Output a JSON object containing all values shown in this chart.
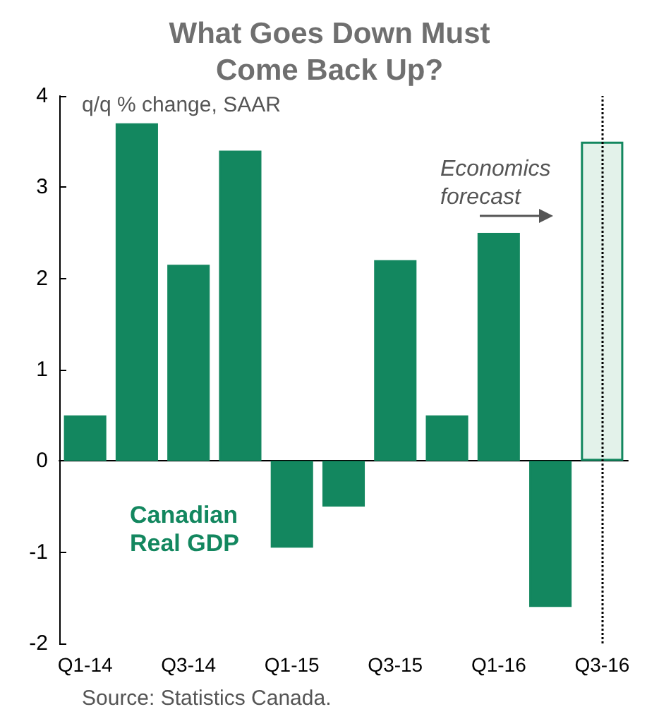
{
  "chart_data": {
    "type": "bar",
    "title": "What Goes Down Must\nCome Back Up?",
    "ylabel": "q/q % change, SAAR",
    "categories": [
      "Q1-14",
      null,
      "Q3-14",
      null,
      "Q1-15",
      null,
      "Q3-15",
      null,
      "Q1-16",
      null,
      "Q3-16"
    ],
    "values": [
      0.5,
      3.7,
      2.15,
      3.4,
      -0.95,
      -0.5,
      2.2,
      0.5,
      2.5,
      -1.6,
      3.5
    ],
    "color": "#13875f",
    "colors": [
      "#13875f",
      "#13875f",
      "#13875f",
      "#13875f",
      "#13875f",
      "#13875f",
      "#13875f",
      "#13875f",
      "#13875f",
      "#13875f",
      "#e3f2ea"
    ],
    "ylim": [
      -2,
      4
    ],
    "yticks": [
      -2,
      -1,
      0,
      1,
      2,
      3,
      4
    ],
    "grid": false,
    "ref_lines": [
      {
        "axis": "x",
        "value": "Q3-16",
        "line_style": "dotted",
        "color": "#000000"
      }
    ],
    "annotations": [
      "Canadian\nReal GDP",
      "Economics\nforecast",
      "Source: Statistics Canada."
    ]
  }
}
